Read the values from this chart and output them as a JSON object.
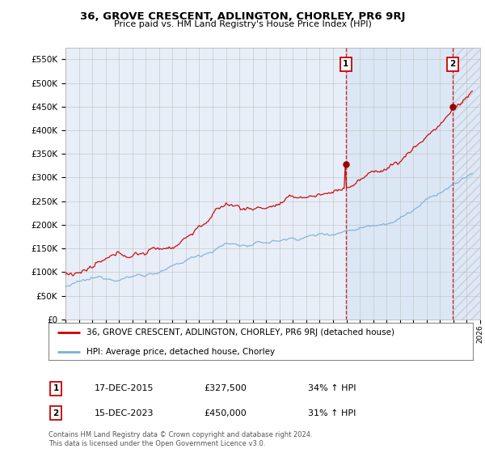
{
  "title": "36, GROVE CRESCENT, ADLINGTON, CHORLEY, PR6 9RJ",
  "subtitle": "Price paid vs. HM Land Registry's House Price Index (HPI)",
  "legend_line1": "36, GROVE CRESCENT, ADLINGTON, CHORLEY, PR6 9RJ (detached house)",
  "legend_line2": "HPI: Average price, detached house, Chorley",
  "annotation1_date": "17-DEC-2015",
  "annotation1_price": 327500,
  "annotation1_hpi": "34% ↑ HPI",
  "annotation2_date": "15-DEC-2023",
  "annotation2_price": 450000,
  "annotation2_hpi": "31% ↑ HPI",
  "footer": "Contains HM Land Registry data © Crown copyright and database right 2024.\nThis data is licensed under the Open Government Licence v3.0.",
  "red_color": "#cc0000",
  "blue_color": "#7ab0d4",
  "grid_color": "#c8c8c8",
  "bg_color": "#e8eef8",
  "bg_color_highlight": "#dce8f5",
  "ylim": [
    0,
    575000
  ],
  "yticks": [
    0,
    50000,
    100000,
    150000,
    200000,
    250000,
    300000,
    350000,
    400000,
    450000,
    500000,
    550000
  ],
  "start_year": 1995,
  "end_year": 2026,
  "sale1_year": 2015.958,
  "sale1_price": 327500,
  "sale2_year": 2023.958,
  "sale2_price": 450000
}
